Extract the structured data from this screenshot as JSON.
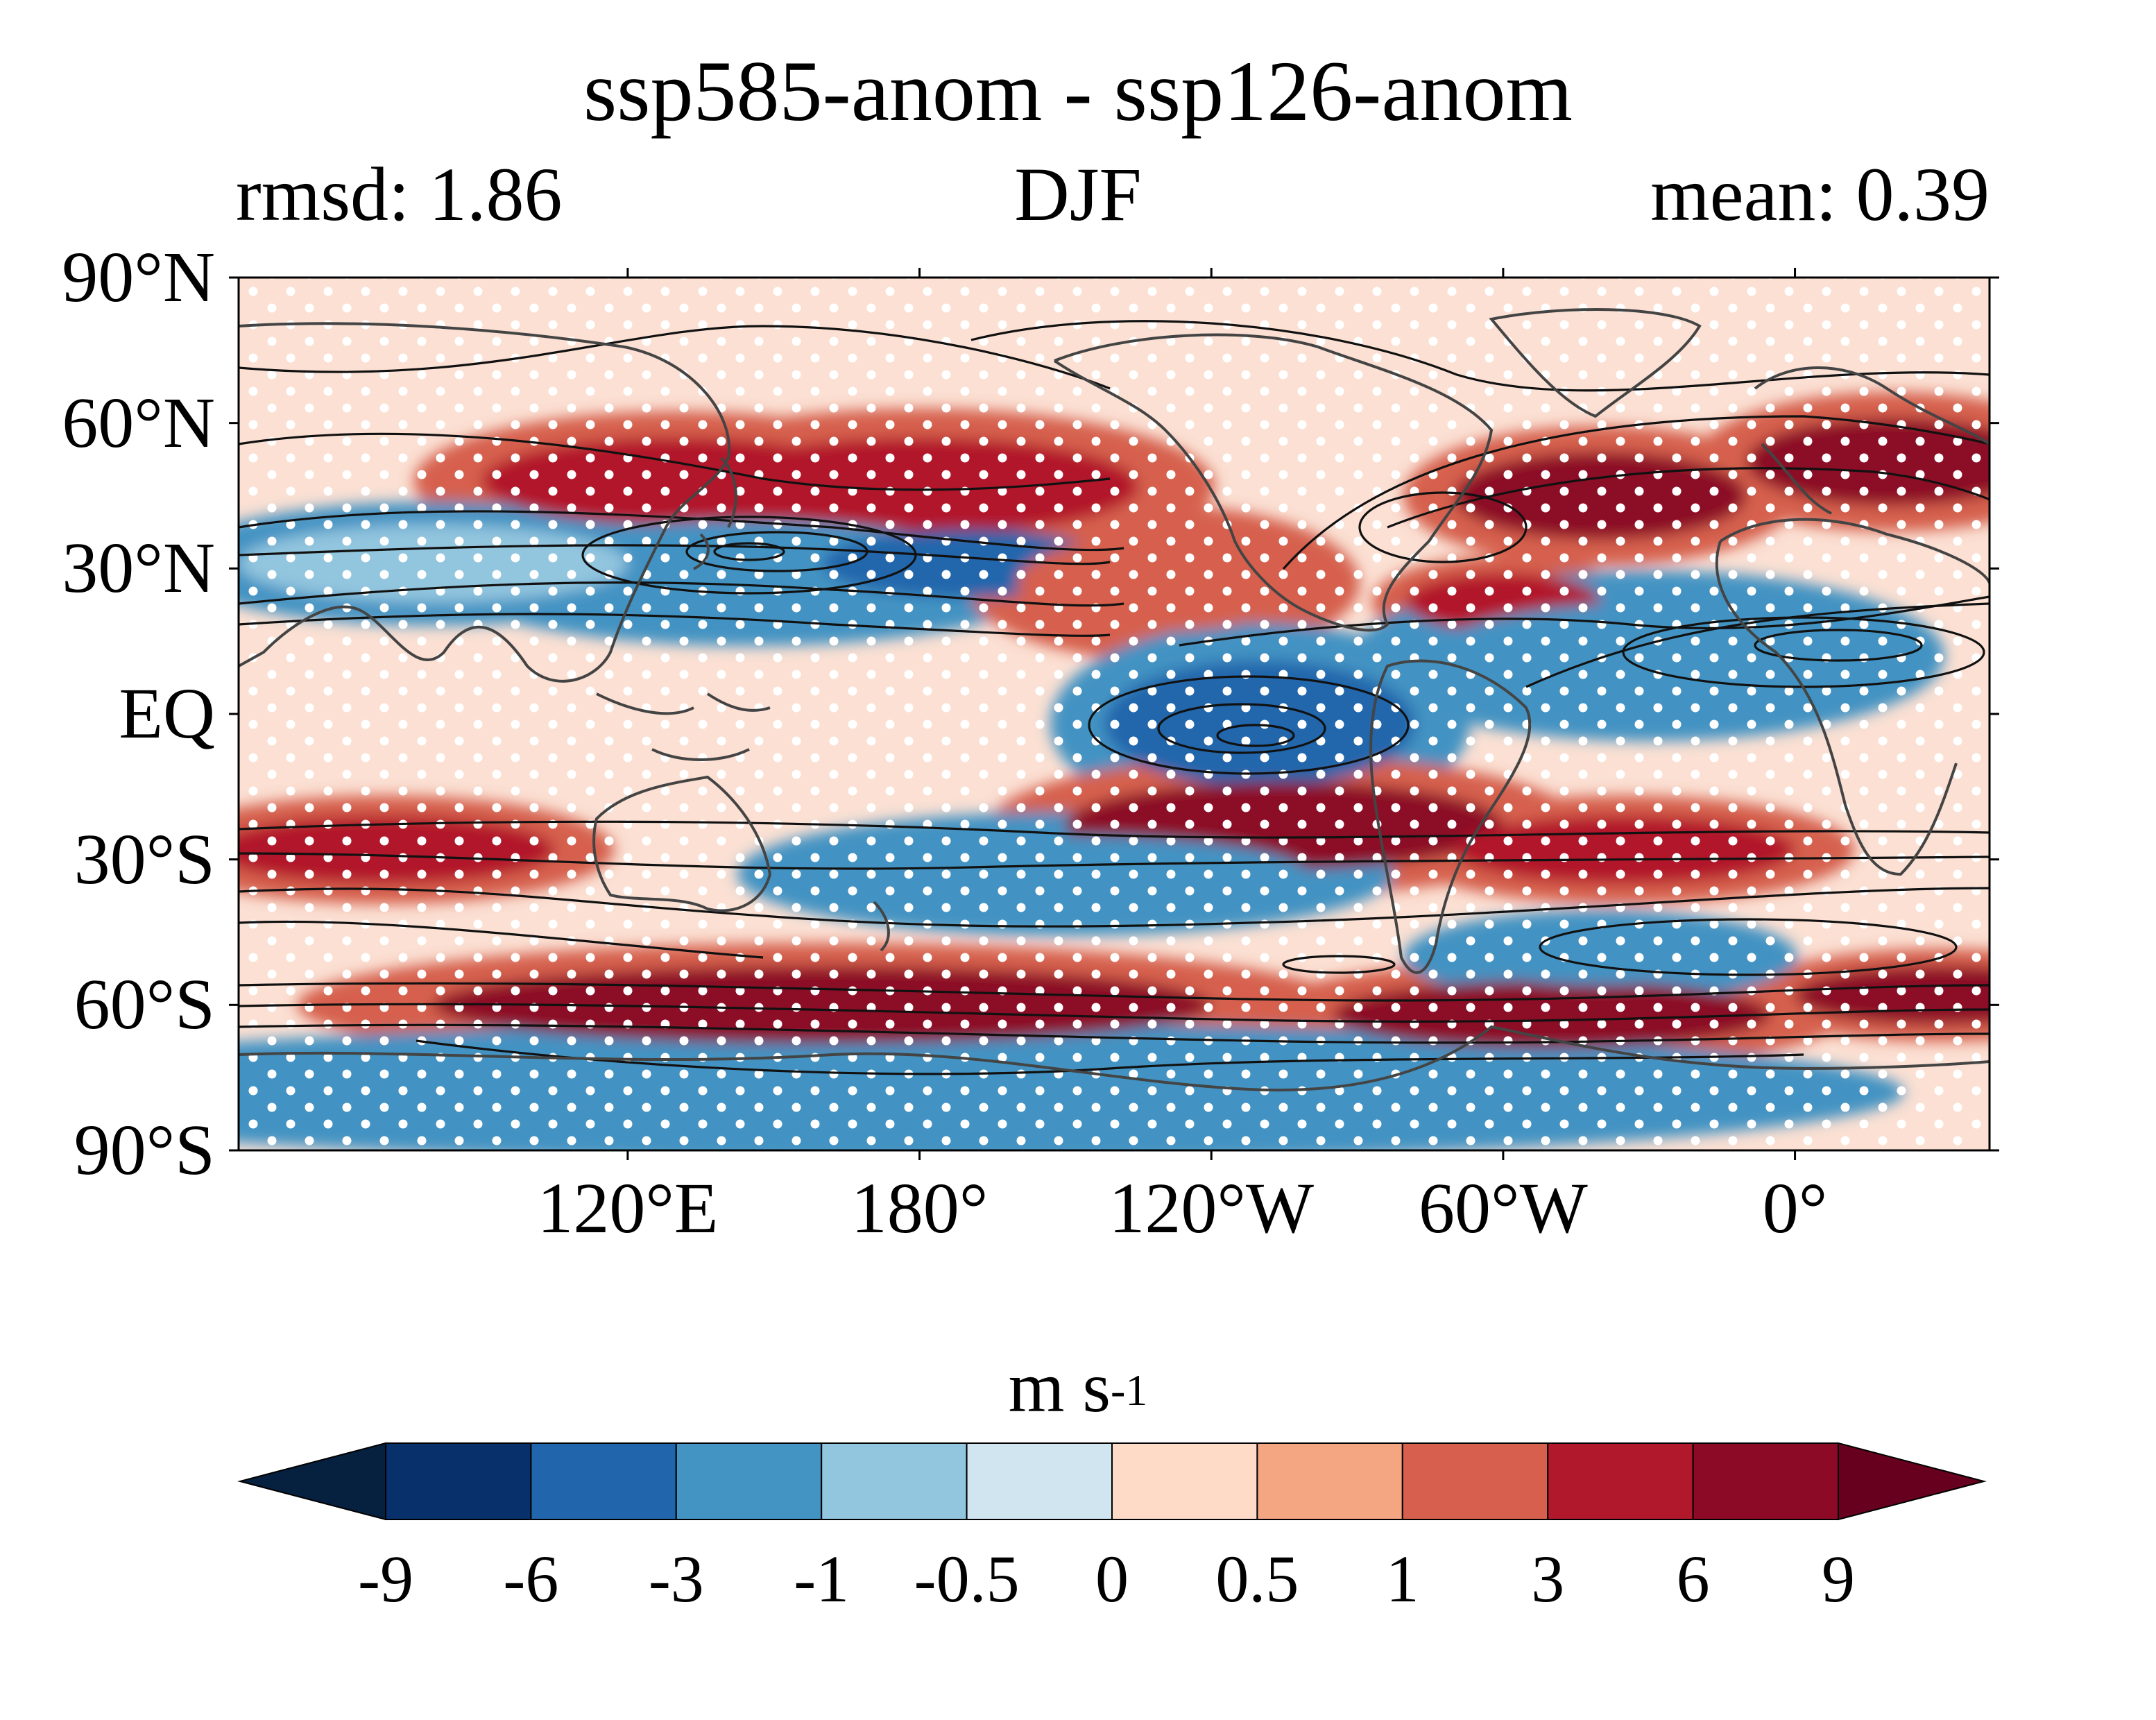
{
  "title": "ssp585-anom - ssp126-anom",
  "subtitle_left": "rmsd: 1.86",
  "subtitle_center": "DJF",
  "subtitle_right": "mean: 0.39",
  "map": {
    "lat_labels": [
      "90°N",
      "60°N",
      "30°N",
      "EQ",
      "30°S",
      "60°S",
      "90°S"
    ],
    "lat_values": [
      90,
      60,
      30,
      0,
      -30,
      -60,
      -90
    ],
    "lon_labels": [
      "120°E",
      "180°",
      "120°W",
      "60°W",
      "0°"
    ],
    "lon_values": [
      120,
      180,
      240,
      300,
      360
    ],
    "lon_range": [
      40,
      400
    ],
    "lat_range": [
      -90,
      90
    ],
    "stippling": "significance",
    "field_blobs": [
      {
        "lon": 130,
        "lat": 48,
        "rx": 40,
        "ry": 9,
        "level": 3
      },
      {
        "lon": 180,
        "lat": 47,
        "rx": 45,
        "ry": 10,
        "level": 3
      },
      {
        "lon": 145,
        "lat": 30,
        "rx": 50,
        "ry": 10,
        "level": -3
      },
      {
        "lon": 190,
        "lat": 31,
        "rx": 30,
        "ry": 7,
        "level": -6
      },
      {
        "lon": 80,
        "lat": 31,
        "rx": 40,
        "ry": 8,
        "level": -1
      },
      {
        "lon": 230,
        "lat": 27,
        "rx": 30,
        "ry": 10,
        "level": 1
      },
      {
        "lon": 320,
        "lat": 45,
        "rx": 30,
        "ry": 9,
        "level": 6
      },
      {
        "lon": 380,
        "lat": 52,
        "rx": 30,
        "ry": 9,
        "level": 6
      },
      {
        "lon": 300,
        "lat": 23,
        "rx": 20,
        "ry": 6,
        "level": 3
      },
      {
        "lon": 250,
        "lat": -2,
        "rx": 32,
        "ry": 13,
        "level": -6
      },
      {
        "lon": 330,
        "lat": 12,
        "rx": 45,
        "ry": 11,
        "level": -3
      },
      {
        "lon": 255,
        "lat": -23,
        "rx": 45,
        "ry": 9,
        "level": 6
      },
      {
        "lon": 210,
        "lat": -33,
        "rx": 50,
        "ry": 8,
        "level": -3
      },
      {
        "lon": 325,
        "lat": -28,
        "rx": 35,
        "ry": 7,
        "level": 3
      },
      {
        "lon": 70,
        "lat": -28,
        "rx": 35,
        "ry": 7,
        "level": 3
      },
      {
        "lon": 160,
        "lat": -60,
        "rx": 80,
        "ry": 8,
        "level": 6
      },
      {
        "lon": 310,
        "lat": -62,
        "rx": 45,
        "ry": 7,
        "level": 6
      },
      {
        "lon": 390,
        "lat": -58,
        "rx": 30,
        "ry": 6,
        "level": 6
      },
      {
        "lon": 180,
        "lat": -78,
        "rx": 150,
        "ry": 9,
        "level": -3
      },
      {
        "lon": 320,
        "lat": -50,
        "rx": 30,
        "ry": 6,
        "level": -3
      }
    ]
  },
  "colorbar": {
    "unit": "m s",
    "unit_exponent": "-1",
    "tick_labels": [
      "-9",
      "-6",
      "-3",
      "-1",
      "-0.5",
      "0",
      "0.5",
      "1",
      "3",
      "6",
      "9"
    ],
    "boundaries": [
      -9,
      -6,
      -3,
      -1,
      -0.5,
      0,
      0.5,
      1,
      3,
      6,
      9
    ],
    "colors": [
      "#08306b",
      "#2166ac",
      "#4393c3",
      "#92c5de",
      "#d1e5f0",
      "#fddbc7",
      "#f4a582",
      "#d6604d",
      "#b2182b",
      "#8c0a26"
    ],
    "under_color": "#06203f",
    "over_color": "#67001f"
  }
}
